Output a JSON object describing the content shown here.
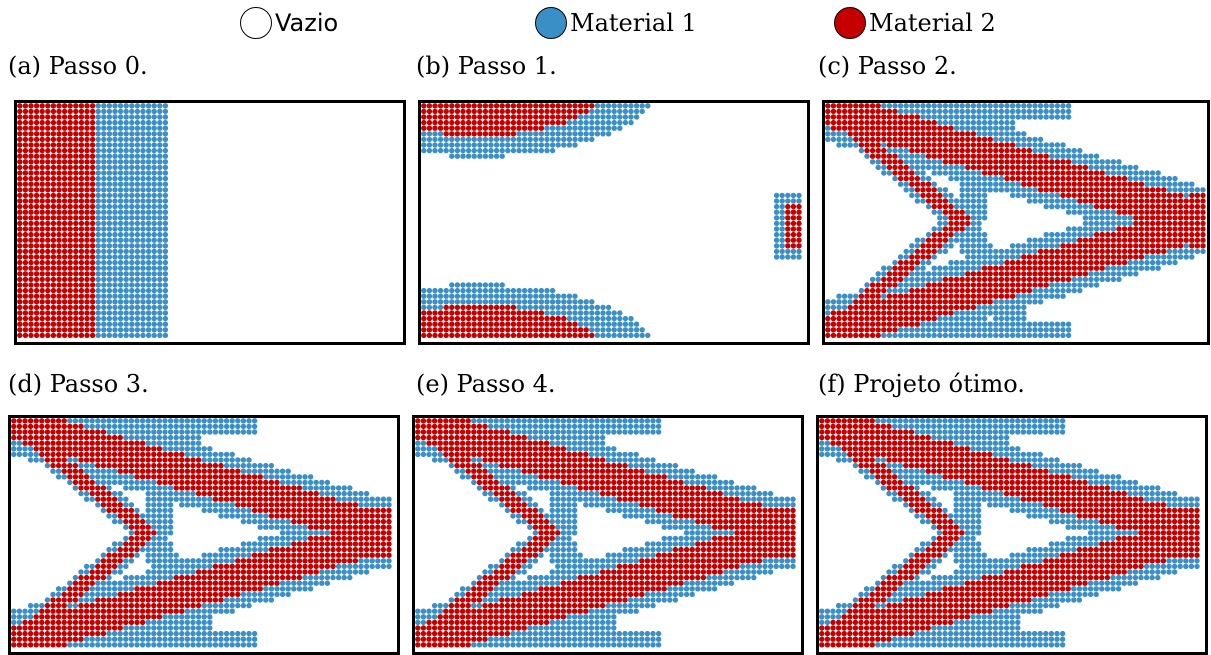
{
  "legend": [
    {
      "label": "Vazio",
      "color": "#ffffff"
    },
    {
      "label": "Material 1",
      "color": "#3a8fc7"
    },
    {
      "label": "Material 2",
      "color": "#c40000"
    }
  ],
  "panels": [
    {
      "caption": "(a) Passo 0.",
      "state": "step0"
    },
    {
      "caption": "(b) Passo 1.",
      "state": "step1"
    },
    {
      "caption": "(c) Passo 2.",
      "state": "truss"
    },
    {
      "caption": "(d) Passo 3.",
      "state": "truss"
    },
    {
      "caption": "(e) Passo 4.",
      "state": "truss"
    },
    {
      "caption": "(f) Projeto ótimo.",
      "state": "truss"
    }
  ]
}
